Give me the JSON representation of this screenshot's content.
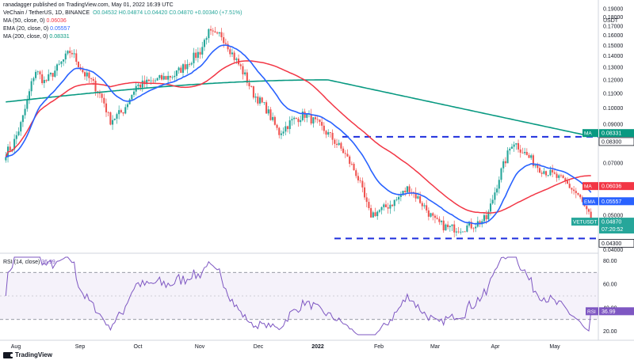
{
  "header": {
    "published": "ranadagger published on TradingView.com, May 01, 2022 16:39 UTC",
    "symbol": "VeChain / TetherUS, 1D, BINANCE",
    "ohlc": "O0.04532 H0.04874 L0.04420 C0.04870 +0.00340 (+7.51%)",
    "ma50_label": "MA (50, close, 0)",
    "ma50_value": "0.06036",
    "ema20_label": "EMA (20, close, 0)",
    "ema20_value": "0.05557",
    "ma200_label": "MA (200, close, 0)",
    "ma200_value": "0.08331"
  },
  "colors": {
    "up": "#26a69a",
    "down": "#ef5350",
    "ma50": "#f23645",
    "ema20": "#2962ff",
    "ma200": "#089981",
    "rsi": "#7e57c2",
    "level": "#1e2fdc"
  },
  "rsi_panel": {
    "label": "RSI (14, close)",
    "value": "36.99",
    "badge": "RSI",
    "badge_value": "36.99"
  },
  "price_badges": {
    "ma200_tag": "MA",
    "ma200_val": "0.08331",
    "level_high": "0.08300",
    "ma50_tag": "MA",
    "ma50_val": "0.06036",
    "ema_tag": "EMA",
    "ema_val": "0.05557",
    "symbol_tag": "VETUSDT",
    "price_val": "0.04870",
    "countdown": "07:20:52",
    "level_low": "0.04300"
  },
  "footer": {
    "brand": "TradingView"
  },
  "chart_data": [
    {
      "type": "candlestick",
      "title": "VeChain / TetherUS, 1D, BINANCE",
      "y_unit": "USDT",
      "y_scale": "log",
      "ylim": [
        0.0395,
        0.195
      ],
      "x_ticks": [
        "Aug",
        "Sep",
        "Oct",
        "Nov",
        "Dec",
        "2022",
        "Feb",
        "Mar",
        "Apr",
        "May"
      ],
      "y_ticks": [
        0.19,
        0.18,
        0.17,
        0.16,
        0.15,
        0.14,
        0.13,
        0.12,
        0.11,
        0.1,
        0.09,
        0.07,
        0.06,
        0.05,
        0.04
      ],
      "y_tick_labels": [
        "0.19000",
        "0.18000",
        "0.17000",
        "0.16000",
        "0.15000",
        "0.14000",
        "0.13000",
        "0.12000",
        "0.11000",
        "0.10000",
        "0.09000",
        "0.07000",
        "0.06000",
        "0.05000",
        "0.04000"
      ],
      "horizontal_levels": [
        0.083,
        0.043
      ],
      "close_series_approx": {
        "x_month_index": [
          0,
          0.1,
          0.25,
          0.45,
          0.6,
          0.8,
          1.0,
          1.2,
          1.3,
          1.4,
          1.5,
          1.6,
          1.8,
          2.0,
          2.2,
          2.4,
          2.6,
          2.8,
          3.0,
          3.1,
          3.2,
          3.25,
          3.3,
          3.4,
          3.5,
          3.6,
          3.7,
          3.8,
          4.0,
          4.2,
          4.4,
          4.6,
          4.8,
          5.0,
          5.2,
          5.4,
          5.6,
          5.8,
          6.0,
          6.2,
          6.4,
          6.6,
          6.8,
          7.0,
          7.2,
          7.4,
          7.6,
          7.8,
          8.0,
          8.2,
          8.4,
          8.6,
          8.8,
          9.0
        ],
        "close": [
          0.075,
          0.078,
          0.092,
          0.128,
          0.118,
          0.13,
          0.145,
          0.125,
          0.12,
          0.113,
          0.105,
          0.092,
          0.098,
          0.115,
          0.118,
          0.121,
          0.124,
          0.134,
          0.145,
          0.163,
          0.16,
          0.158,
          0.162,
          0.152,
          0.14,
          0.131,
          0.121,
          0.11,
          0.1,
          0.085,
          0.092,
          0.096,
          0.09,
          0.083,
          0.075,
          0.065,
          0.05,
          0.052,
          0.055,
          0.06,
          0.054,
          0.048,
          0.046,
          0.046,
          0.047,
          0.049,
          0.065,
          0.081,
          0.074,
          0.068,
          0.065,
          0.062,
          0.057,
          0.0487
        ]
      },
      "series": [
        {
          "name": "MA (50, close, 0)",
          "last": 0.06036
        },
        {
          "name": "EMA (20, close, 0)",
          "last": 0.05557
        },
        {
          "name": "MA (200, close, 0)",
          "last": 0.08331
        }
      ]
    },
    {
      "type": "line",
      "title": "RSI (14, close)",
      "ylim": [
        15,
        85
      ],
      "y_ticks": [
        80,
        60,
        40,
        20
      ],
      "y_tick_labels": [
        "80.00",
        "60.00",
        "40.00",
        "20.00"
      ],
      "bands": [
        70,
        30
      ],
      "series": [
        {
          "name": "RSI (14, close)",
          "last": 36.99
        }
      ]
    }
  ]
}
